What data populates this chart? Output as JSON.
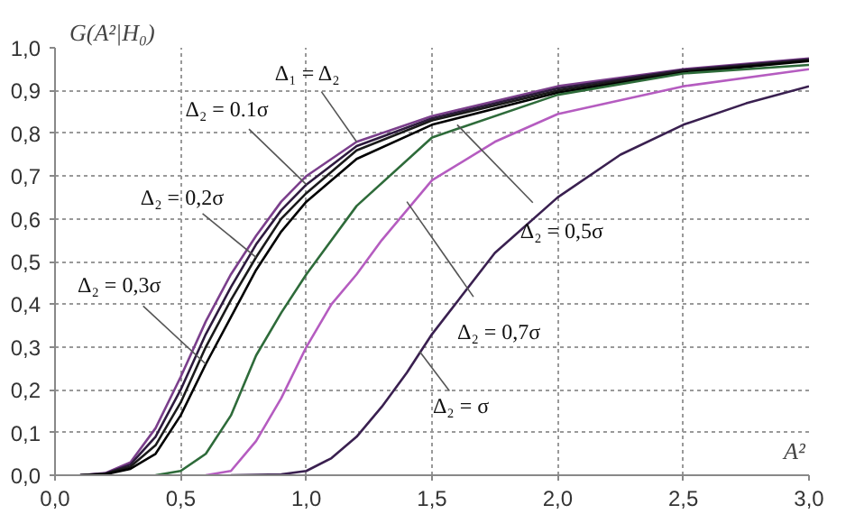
{
  "chart_data": {
    "type": "line",
    "xlabel": "A²",
    "ylabel": "G(A²|H₀)",
    "xlim": [
      0,
      3.0
    ],
    "ylim": [
      0,
      1.0
    ],
    "xticks": [
      {
        "value": 0,
        "label": "0,0"
      },
      {
        "value": 0.5,
        "label": "0,5"
      },
      {
        "value": 1.0,
        "label": "1,0"
      },
      {
        "value": 1.5,
        "label": "1,5"
      },
      {
        "value": 2.0,
        "label": "2,0"
      },
      {
        "value": 2.5,
        "label": "2,5"
      },
      {
        "value": 3.0,
        "label": "3,0"
      }
    ],
    "yticks": [
      {
        "value": 0,
        "label": "0,0"
      },
      {
        "value": 0.1,
        "label": "0,1"
      },
      {
        "value": 0.2,
        "label": "0,2"
      },
      {
        "value": 0.3,
        "label": "0,3"
      },
      {
        "value": 0.4,
        "label": "0,4"
      },
      {
        "value": 0.5,
        "label": "0,5"
      },
      {
        "value": 0.6,
        "label": "0,6"
      },
      {
        "value": 0.7,
        "label": "0,7"
      },
      {
        "value": 0.8,
        "label": "0,8"
      },
      {
        "value": 0.9,
        "label": "0,9"
      },
      {
        "value": 1.0,
        "label": "1,0"
      }
    ],
    "grid": true,
    "line_style": "solid",
    "marker": "none",
    "series": [
      {
        "color": "#7b3f8c",
        "x": [
          0.1,
          0.2,
          0.3,
          0.4,
          0.5,
          0.6,
          0.7,
          0.8,
          0.9,
          1.0,
          1.2,
          1.5,
          2.0,
          2.5,
          3.0
        ],
        "values": [
          0,
          0.005,
          0.03,
          0.11,
          0.23,
          0.36,
          0.47,
          0.56,
          0.64,
          0.7,
          0.78,
          0.84,
          0.91,
          0.95,
          0.975
        ]
      },
      {
        "color": "#2d1a3d",
        "x": [
          0.1,
          0.2,
          0.3,
          0.4,
          0.5,
          0.6,
          0.7,
          0.8,
          0.9,
          1.0,
          1.2,
          1.5,
          2.0,
          2.5,
          3.0
        ],
        "values": [
          0,
          0.004,
          0.025,
          0.09,
          0.2,
          0.33,
          0.44,
          0.54,
          0.62,
          0.68,
          0.77,
          0.835,
          0.905,
          0.948,
          0.973
        ]
      },
      {
        "color": "#1a1a1a",
        "x": [
          0.1,
          0.2,
          0.3,
          0.4,
          0.5,
          0.6,
          0.7,
          0.8,
          0.9,
          1.0,
          1.2,
          1.5,
          2.0,
          2.5,
          3.0
        ],
        "values": [
          0,
          0.003,
          0.02,
          0.07,
          0.17,
          0.3,
          0.41,
          0.51,
          0.6,
          0.66,
          0.76,
          0.83,
          0.9,
          0.945,
          0.971
        ]
      },
      {
        "color": "#000000",
        "x": [
          0.1,
          0.2,
          0.3,
          0.4,
          0.5,
          0.6,
          0.7,
          0.8,
          0.9,
          1.0,
          1.2,
          1.5,
          2.0,
          2.5,
          3.0
        ],
        "values": [
          0,
          0.002,
          0.015,
          0.05,
          0.14,
          0.26,
          0.37,
          0.48,
          0.57,
          0.64,
          0.74,
          0.82,
          0.895,
          0.942,
          0.969
        ]
      },
      {
        "color": "#2e6b3a",
        "x": [
          0.4,
          0.5,
          0.6,
          0.7,
          0.8,
          0.9,
          1.0,
          1.2,
          1.5,
          2.0,
          2.5,
          3.0
        ],
        "values": [
          0,
          0.01,
          0.05,
          0.14,
          0.28,
          0.38,
          0.47,
          0.63,
          0.79,
          0.89,
          0.94,
          0.96
        ]
      },
      {
        "color": "#b55cc0",
        "x": [
          0.6,
          0.7,
          0.8,
          0.9,
          1.0,
          1.1,
          1.2,
          1.3,
          1.5,
          1.75,
          2.0,
          2.5,
          3.0
        ],
        "values": [
          0,
          0.01,
          0.08,
          0.18,
          0.3,
          0.4,
          0.47,
          0.55,
          0.69,
          0.78,
          0.845,
          0.91,
          0.95
        ]
      },
      {
        "color": "#3a2050",
        "x": [
          0.7,
          0.9,
          1.0,
          1.1,
          1.2,
          1.3,
          1.4,
          1.5,
          1.75,
          2.0,
          2.25,
          2.5,
          2.75,
          3.0
        ],
        "values": [
          0,
          0.002,
          0.01,
          0.04,
          0.09,
          0.16,
          0.24,
          0.33,
          0.52,
          0.65,
          0.75,
          0.82,
          0.87,
          0.91
        ]
      }
    ],
    "annotations": [
      {
        "text": "Δ₁ = Δ₂",
        "x": 1.2,
        "y": 0.78
      },
      {
        "text": "Δ₂ = 0.1σ",
        "x": 1.0,
        "y": 0.68
      },
      {
        "text": "Δ₂ = 0,2σ",
        "x": 0.8,
        "y": 0.51
      },
      {
        "text": "Δ₂ = 0,3σ",
        "x": 0.6,
        "y": 0.26
      },
      {
        "text": "Δ₂ = 0,5σ",
        "x": 1.6,
        "y": 0.82
      },
      {
        "text": "Δ₂ = 0,7σ",
        "x": 1.4,
        "y": 0.64
      },
      {
        "text": "Δ₂ = σ",
        "x": 1.45,
        "y": 0.29
      }
    ]
  }
}
